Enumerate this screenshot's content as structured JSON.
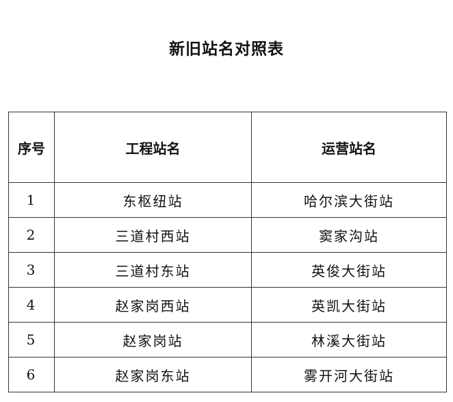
{
  "title": "新旧站名对照表",
  "table": {
    "headers": [
      "序号",
      "工程站名",
      "运营站名"
    ],
    "rows": [
      [
        "1",
        "东枢纽站",
        "哈尔滨大街站"
      ],
      [
        "2",
        "三道村西站",
        "窦家沟站"
      ],
      [
        "3",
        "三道村东站",
        "英俊大街站"
      ],
      [
        "4",
        "赵家岗西站",
        "英凯大街站"
      ],
      [
        "5",
        "赵家岗站",
        "林溪大街站"
      ],
      [
        "6",
        "赵家岗东站",
        "雾开河大街站"
      ]
    ]
  }
}
